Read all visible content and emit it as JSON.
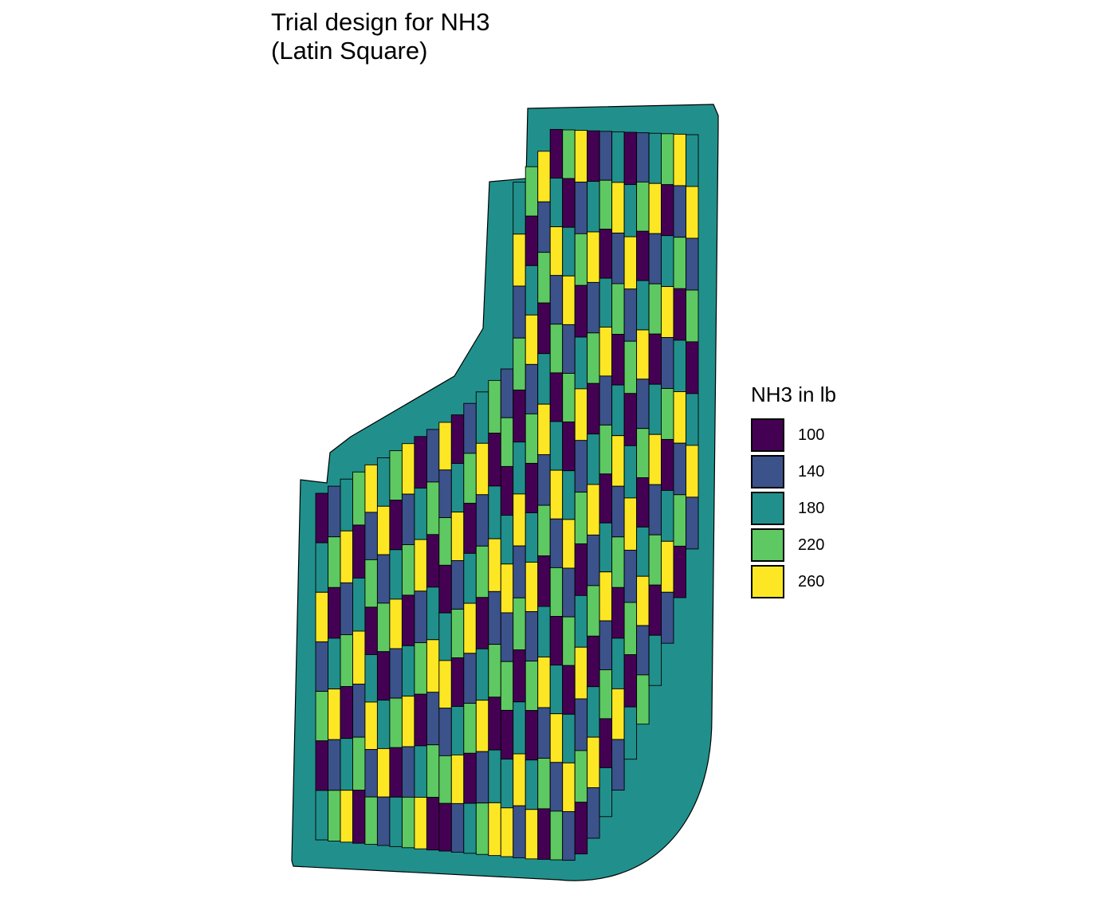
{
  "title": {
    "line1": "Trial design for NH3",
    "line2": "(Latin Square)"
  },
  "legend": {
    "title": "NH3 in lb",
    "items": [
      {
        "label": "100",
        "color": "#440154"
      },
      {
        "label": "140",
        "color": "#3b528b"
      },
      {
        "label": "180",
        "color": "#21908c"
      },
      {
        "label": "220",
        "color": "#5ec962"
      },
      {
        "label": "260",
        "color": "#fde725"
      }
    ]
  },
  "map": {
    "headland_rate": "180",
    "colors": {
      "100": "#440154",
      "140": "#3b528b",
      "180": "#21908c",
      "220": "#5ec962",
      "260": "#fde725"
    },
    "latin_square": [
      [
        0,
        1,
        2,
        3,
        4
      ],
      [
        2,
        3,
        4,
        0,
        1
      ],
      [
        4,
        0,
        1,
        2,
        3
      ],
      [
        1,
        2,
        3,
        4,
        0
      ],
      [
        3,
        4,
        0,
        1,
        2
      ]
    ]
  }
}
